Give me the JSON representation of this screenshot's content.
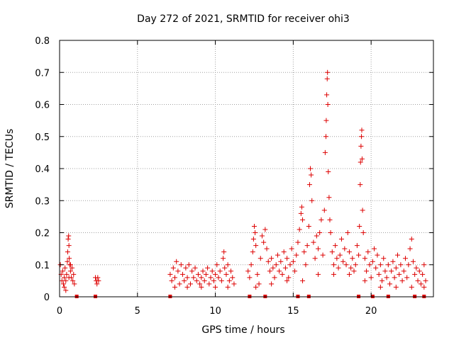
{
  "chart_data": {
    "type": "scatter",
    "title": "Day 272 of 2021, SRMTID for receiver ohi3",
    "xlabel": "GPS time / hours",
    "ylabel": "SRMTID / TECUs",
    "xlim": [
      0,
      24
    ],
    "ylim": [
      0,
      0.8
    ],
    "xticks": [
      0,
      5,
      10,
      15,
      20
    ],
    "yticks": [
      0,
      0.1,
      0.2,
      0.3,
      0.4,
      0.5,
      0.6,
      0.7,
      0.8
    ],
    "grid": true,
    "marker": "+",
    "color": "#dd0000",
    "series": [
      {
        "name": "SRMTID",
        "points": [
          [
            0.05,
            0.1
          ],
          [
            0.1,
            0.07
          ],
          [
            0.15,
            0.05
          ],
          [
            0.2,
            0.08
          ],
          [
            0.25,
            0.04
          ],
          [
            0.3,
            0.06
          ],
          [
            0.35,
            0.09
          ],
          [
            0.4,
            0.05
          ],
          [
            0.45,
            0.07
          ],
          [
            0.5,
            0.11
          ],
          [
            0.52,
            0.14
          ],
          [
            0.55,
            0.18
          ],
          [
            0.58,
            0.19
          ],
          [
            0.6,
            0.16
          ],
          [
            0.62,
            0.12
          ],
          [
            0.65,
            0.1
          ],
          [
            0.7,
            0.08
          ],
          [
            0.75,
            0.06
          ],
          [
            0.8,
            0.09
          ],
          [
            0.85,
            0.05
          ],
          [
            0.9,
            0.07
          ],
          [
            0.95,
            0.04
          ],
          [
            0.3,
            0.03
          ],
          [
            0.4,
            0.02
          ],
          [
            0.6,
            0.06
          ],
          [
            0.7,
            0.1
          ],
          [
            2.3,
            0.06
          ],
          [
            2.35,
            0.05
          ],
          [
            2.4,
            0.04
          ],
          [
            2.45,
            0.06
          ],
          [
            2.5,
            0.05
          ],
          [
            7.1,
            0.07
          ],
          [
            7.2,
            0.05
          ],
          [
            7.3,
            0.09
          ],
          [
            7.4,
            0.06
          ],
          [
            7.5,
            0.11
          ],
          [
            7.6,
            0.08
          ],
          [
            7.7,
            0.04
          ],
          [
            7.8,
            0.1
          ],
          [
            7.9,
            0.07
          ],
          [
            8.0,
            0.05
          ],
          [
            8.1,
            0.09
          ],
          [
            8.2,
            0.06
          ],
          [
            8.3,
            0.1
          ],
          [
            8.4,
            0.04
          ],
          [
            8.5,
            0.08
          ],
          [
            8.6,
            0.06
          ],
          [
            8.7,
            0.09
          ],
          [
            8.8,
            0.05
          ],
          [
            8.9,
            0.07
          ],
          [
            9.0,
            0.04
          ],
          [
            9.1,
            0.06
          ],
          [
            9.2,
            0.08
          ],
          [
            9.3,
            0.05
          ],
          [
            9.4,
            0.07
          ],
          [
            9.5,
            0.09
          ],
          [
            9.6,
            0.04
          ],
          [
            9.7,
            0.06
          ],
          [
            9.8,
            0.08
          ],
          [
            9.9,
            0.05
          ],
          [
            10.0,
            0.07
          ],
          [
            10.1,
            0.1
          ],
          [
            10.2,
            0.06
          ],
          [
            10.3,
            0.08
          ],
          [
            10.4,
            0.05
          ],
          [
            10.5,
            0.12
          ],
          [
            10.55,
            0.14
          ],
          [
            10.6,
            0.09
          ],
          [
            10.7,
            0.07
          ],
          [
            10.8,
            0.1
          ],
          [
            10.9,
            0.05
          ],
          [
            11.0,
            0.08
          ],
          [
            11.1,
            0.06
          ],
          [
            11.2,
            0.04
          ],
          [
            7.4,
            0.03
          ],
          [
            8.2,
            0.03
          ],
          [
            9.1,
            0.03
          ],
          [
            10.0,
            0.03
          ],
          [
            10.8,
            0.03
          ],
          [
            12.1,
            0.08
          ],
          [
            12.2,
            0.06
          ],
          [
            12.3,
            0.1
          ],
          [
            12.4,
            0.14
          ],
          [
            12.45,
            0.18
          ],
          [
            12.5,
            0.22
          ],
          [
            12.55,
            0.2
          ],
          [
            12.6,
            0.16
          ],
          [
            12.7,
            0.07
          ],
          [
            12.8,
            0.04
          ],
          [
            12.9,
            0.12
          ],
          [
            13.0,
            0.19
          ],
          [
            13.1,
            0.17
          ],
          [
            13.2,
            0.21
          ],
          [
            13.3,
            0.15
          ],
          [
            13.4,
            0.11
          ],
          [
            13.5,
            0.08
          ],
          [
            13.6,
            0.12
          ],
          [
            13.7,
            0.09
          ],
          [
            13.8,
            0.06
          ],
          [
            13.9,
            0.1
          ],
          [
            14.0,
            0.13
          ],
          [
            14.1,
            0.08
          ],
          [
            14.2,
            0.11
          ],
          [
            14.3,
            0.07
          ],
          [
            14.4,
            0.14
          ],
          [
            14.5,
            0.09
          ],
          [
            14.6,
            0.12
          ],
          [
            14.7,
            0.06
          ],
          [
            14.8,
            0.1
          ],
          [
            14.9,
            0.15
          ],
          [
            15.0,
            0.11
          ],
          [
            15.1,
            0.08
          ],
          [
            15.2,
            0.13
          ],
          [
            15.3,
            0.17
          ],
          [
            15.4,
            0.21
          ],
          [
            15.5,
            0.26
          ],
          [
            15.55,
            0.28
          ],
          [
            15.6,
            0.24
          ],
          [
            15.7,
            0.14
          ],
          [
            15.8,
            0.1
          ],
          [
            15.9,
            0.16
          ],
          [
            16.0,
            0.22
          ],
          [
            16.05,
            0.35
          ],
          [
            16.1,
            0.4
          ],
          [
            16.15,
            0.38
          ],
          [
            16.2,
            0.3
          ],
          [
            16.3,
            0.17
          ],
          [
            16.4,
            0.12
          ],
          [
            16.5,
            0.19
          ],
          [
            16.6,
            0.15
          ],
          [
            16.7,
            0.2
          ],
          [
            16.8,
            0.24
          ],
          [
            16.9,
            0.13
          ],
          [
            17.0,
            0.27
          ],
          [
            17.05,
            0.45
          ],
          [
            17.1,
            0.5
          ],
          [
            17.12,
            0.55
          ],
          [
            17.15,
            0.63
          ],
          [
            17.18,
            0.68
          ],
          [
            17.2,
            0.7
          ],
          [
            17.22,
            0.6
          ],
          [
            17.25,
            0.39
          ],
          [
            17.3,
            0.31
          ],
          [
            17.35,
            0.24
          ],
          [
            17.4,
            0.2
          ],
          [
            17.5,
            0.14
          ],
          [
            17.6,
            0.1
          ],
          [
            17.7,
            0.16
          ],
          [
            17.8,
            0.12
          ],
          [
            17.9,
            0.09
          ],
          [
            18.0,
            0.13
          ],
          [
            18.1,
            0.18
          ],
          [
            18.2,
            0.11
          ],
          [
            18.3,
            0.15
          ],
          [
            18.4,
            0.1
          ],
          [
            18.5,
            0.2
          ],
          [
            18.6,
            0.14
          ],
          [
            18.7,
            0.09
          ],
          [
            18.8,
            0.12
          ],
          [
            18.9,
            0.08
          ],
          [
            19.0,
            0.1
          ],
          [
            19.1,
            0.16
          ],
          [
            19.2,
            0.13
          ],
          [
            19.25,
            0.22
          ],
          [
            19.3,
            0.35
          ],
          [
            19.32,
            0.42
          ],
          [
            19.35,
            0.47
          ],
          [
            19.38,
            0.5
          ],
          [
            19.4,
            0.52
          ],
          [
            19.42,
            0.43
          ],
          [
            19.45,
            0.27
          ],
          [
            19.5,
            0.2
          ],
          [
            19.6,
            0.12
          ],
          [
            19.7,
            0.08
          ],
          [
            19.8,
            0.14
          ],
          [
            19.9,
            0.1
          ],
          [
            20.0,
            0.06
          ],
          [
            20.1,
            0.11
          ],
          [
            20.2,
            0.15
          ],
          [
            20.3,
            0.09
          ],
          [
            20.4,
            0.13
          ],
          [
            20.5,
            0.07
          ],
          [
            20.6,
            0.1
          ],
          [
            20.7,
            0.05
          ],
          [
            20.8,
            0.12
          ],
          [
            20.9,
            0.08
          ],
          [
            21.0,
            0.06
          ],
          [
            21.1,
            0.1
          ],
          [
            21.2,
            0.04
          ],
          [
            21.3,
            0.08
          ],
          [
            21.4,
            0.11
          ],
          [
            21.5,
            0.06
          ],
          [
            21.6,
            0.09
          ],
          [
            21.7,
            0.13
          ],
          [
            21.8,
            0.07
          ],
          [
            21.9,
            0.1
          ],
          [
            22.0,
            0.05
          ],
          [
            22.1,
            0.08
          ],
          [
            22.2,
            0.12
          ],
          [
            22.3,
            0.06
          ],
          [
            22.4,
            0.1
          ],
          [
            22.5,
            0.15
          ],
          [
            22.6,
            0.18
          ],
          [
            22.7,
            0.11
          ],
          [
            22.8,
            0.07
          ],
          [
            22.9,
            0.09
          ],
          [
            23.0,
            0.05
          ],
          [
            23.1,
            0.08
          ],
          [
            23.2,
            0.04
          ],
          [
            23.3,
            0.07
          ],
          [
            23.4,
            0.1
          ],
          [
            23.5,
            0.05
          ],
          [
            12.6,
            0.03
          ],
          [
            13.6,
            0.04
          ],
          [
            14.6,
            0.05
          ],
          [
            15.6,
            0.05
          ],
          [
            16.6,
            0.07
          ],
          [
            17.6,
            0.07
          ],
          [
            18.6,
            0.07
          ],
          [
            19.6,
            0.05
          ],
          [
            20.6,
            0.03
          ],
          [
            21.6,
            0.03
          ],
          [
            22.6,
            0.03
          ],
          [
            23.4,
            0.03
          ]
        ]
      }
    ],
    "zero_markers": [
      1.1,
      2.3,
      7.1,
      12.2,
      13.2,
      15.3,
      16.0,
      19.2,
      20.1,
      21.1,
      22.8,
      23.4
    ]
  }
}
